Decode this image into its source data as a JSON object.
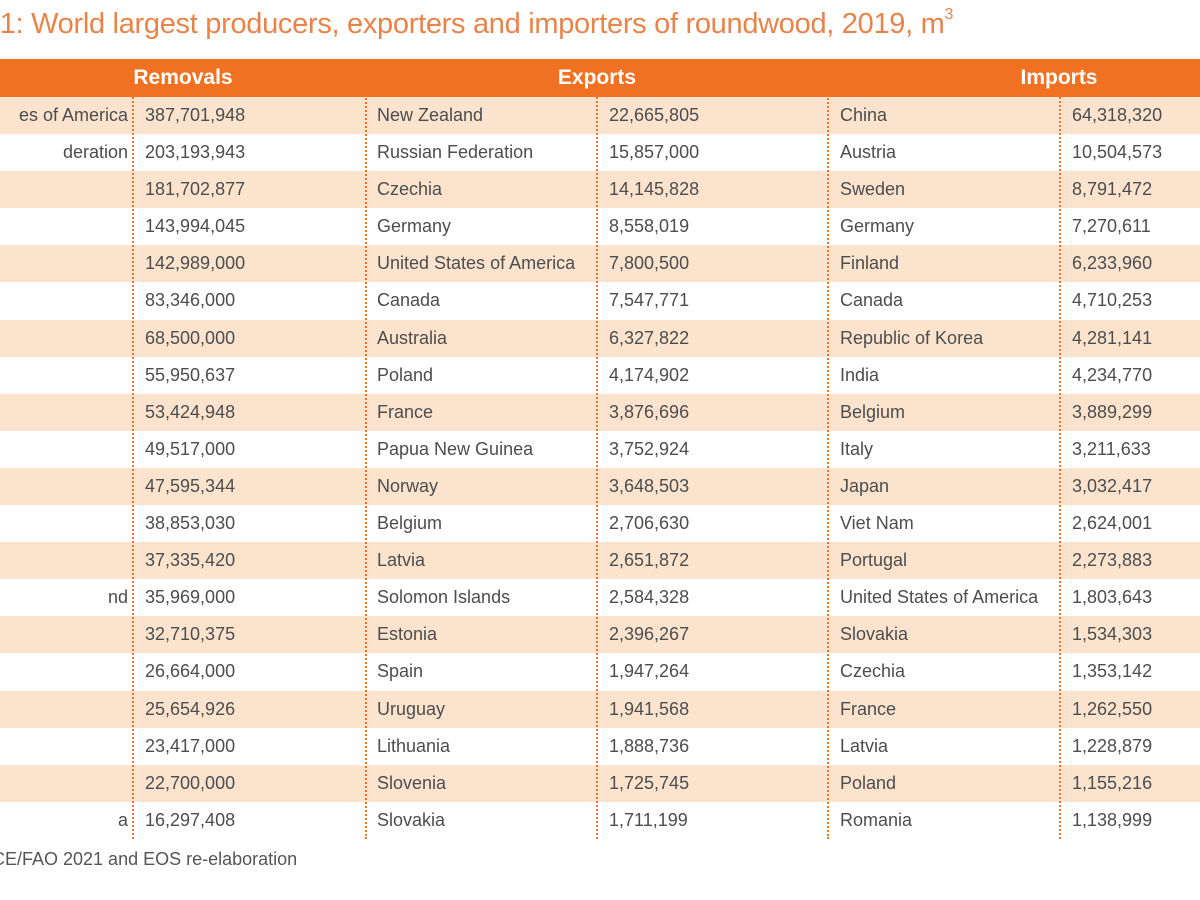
{
  "title": {
    "text": ".1: World largest producers, exporters and importers of roundwood, 2019, m",
    "superscript": "3"
  },
  "headers": {
    "removals": "Removals",
    "exports": "Exports",
    "imports": "Imports"
  },
  "rows": [
    {
      "rem_name": "es of America",
      "rem_val": "387,701,948",
      "exp_name": "New Zealand",
      "exp_val": "22,665,805",
      "imp_name": "China",
      "imp_val": "64,318,320"
    },
    {
      "rem_name": "deration",
      "rem_val": "203,193,943",
      "exp_name": "Russian Federation",
      "exp_val": "15,857,000",
      "imp_name": "Austria",
      "imp_val": "10,504,573"
    },
    {
      "rem_name": "",
      "rem_val": "181,702,877",
      "exp_name": "Czechia",
      "exp_val": "14,145,828",
      "imp_name": "Sweden",
      "imp_val": "8,791,472"
    },
    {
      "rem_name": "",
      "rem_val": "143,994,045",
      "exp_name": "Germany",
      "exp_val": "8,558,019",
      "imp_name": "Germany",
      "imp_val": "7,270,611"
    },
    {
      "rem_name": "",
      "rem_val": "142,989,000",
      "exp_name": "United States of America",
      "exp_val": "7,800,500",
      "imp_name": "Finland",
      "imp_val": "6,233,960"
    },
    {
      "rem_name": "",
      "rem_val": "83,346,000",
      "exp_name": "Canada",
      "exp_val": "7,547,771",
      "imp_name": "Canada",
      "imp_val": "4,710,253"
    },
    {
      "rem_name": "",
      "rem_val": "68,500,000",
      "exp_name": "Australia",
      "exp_val": "6,327,822",
      "imp_name": "Republic of Korea",
      "imp_val": "4,281,141"
    },
    {
      "rem_name": "",
      "rem_val": "55,950,637",
      "exp_name": "Poland",
      "exp_val": "4,174,902",
      "imp_name": "India",
      "imp_val": "4,234,770"
    },
    {
      "rem_name": "",
      "rem_val": "53,424,948",
      "exp_name": "France",
      "exp_val": "3,876,696",
      "imp_name": "Belgium",
      "imp_val": "3,889,299"
    },
    {
      "rem_name": "",
      "rem_val": "49,517,000",
      "exp_name": "Papua New Guinea",
      "exp_val": "3,752,924",
      "imp_name": "Italy",
      "imp_val": "3,211,633"
    },
    {
      "rem_name": "",
      "rem_val": "47,595,344",
      "exp_name": "Norway",
      "exp_val": "3,648,503",
      "imp_name": "Japan",
      "imp_val": "3,032,417"
    },
    {
      "rem_name": "",
      "rem_val": "38,853,030",
      "exp_name": "Belgium",
      "exp_val": "2,706,630",
      "imp_name": "Viet Nam",
      "imp_val": "2,624,001"
    },
    {
      "rem_name": "",
      "rem_val": "37,335,420",
      "exp_name": "Latvia",
      "exp_val": "2,651,872",
      "imp_name": "Portugal",
      "imp_val": "2,273,883"
    },
    {
      "rem_name": "nd",
      "rem_val": "35,969,000",
      "exp_name": "Solomon Islands",
      "exp_val": "2,584,328",
      "imp_name": "United States of America",
      "imp_val": "1,803,643"
    },
    {
      "rem_name": "",
      "rem_val": "32,710,375",
      "exp_name": "Estonia",
      "exp_val": "2,396,267",
      "imp_name": "Slovakia",
      "imp_val": "1,534,303"
    },
    {
      "rem_name": "",
      "rem_val": "26,664,000",
      "exp_name": "Spain",
      "exp_val": "1,947,264",
      "imp_name": "Czechia",
      "imp_val": "1,353,142"
    },
    {
      "rem_name": "",
      "rem_val": "25,654,926",
      "exp_name": "Uruguay",
      "exp_val": "1,941,568",
      "imp_name": "France",
      "imp_val": "1,262,550"
    },
    {
      "rem_name": "",
      "rem_val": "23,417,000",
      "exp_name": "Lithuania",
      "exp_val": "1,888,736",
      "imp_name": "Latvia",
      "imp_val": "1,228,879"
    },
    {
      "rem_name": "",
      "rem_val": "22,700,000",
      "exp_name": "Slovenia",
      "exp_val": "1,725,745",
      "imp_name": "Poland",
      "imp_val": "1,155,216"
    },
    {
      "rem_name": "a",
      "rem_val": "16,297,408",
      "exp_name": "Slovakia",
      "exp_val": "1,711,199",
      "imp_name": "Romania",
      "imp_val": "1,138,999"
    }
  ],
  "source": "CE/FAO 2021 and EOS re-elaboration",
  "colors": {
    "header_bg": "#f07122",
    "stripe_bg": "#fbe3cd",
    "title": "#e8834a"
  }
}
